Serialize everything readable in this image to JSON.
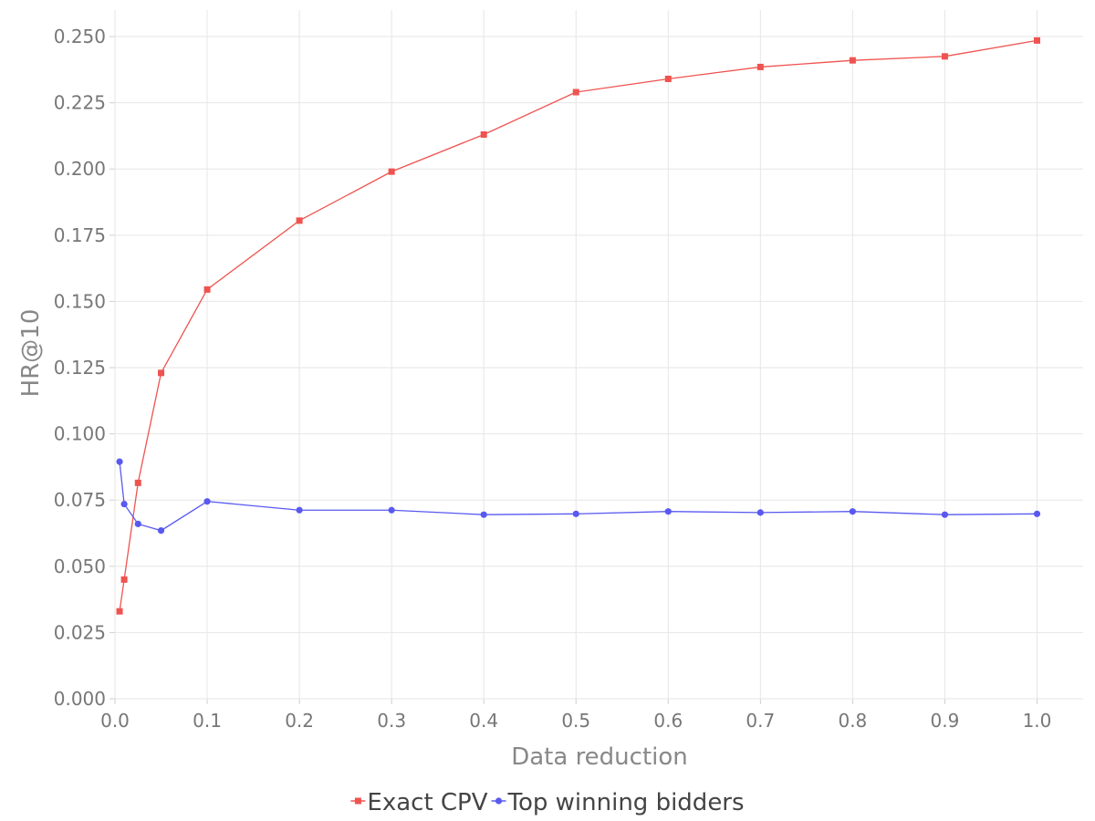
{
  "chart_data": {
    "type": "line",
    "title": "",
    "xlabel": "Data reduction",
    "ylabel": "HR@10",
    "xlim": [
      0,
      1.05
    ],
    "ylim": [
      0,
      0.26
    ],
    "grid": true,
    "legend_position": "bottom-center",
    "x_ticks": [
      0.0,
      0.1,
      0.2,
      0.3,
      0.4,
      0.5,
      0.6,
      0.7,
      0.8,
      0.9,
      1.0
    ],
    "x_tick_labels": [
      "0.0",
      "0.1",
      "0.2",
      "0.3",
      "0.4",
      "0.5",
      "0.6",
      "0.7",
      "0.8",
      "0.9",
      "1.0"
    ],
    "y_ticks": [
      0.0,
      0.025,
      0.05,
      0.075,
      0.1,
      0.125,
      0.15,
      0.175,
      0.2,
      0.225,
      0.25
    ],
    "y_tick_labels": [
      "0.000",
      "0.025",
      "0.050",
      "0.075",
      "0.100",
      "0.125",
      "0.150",
      "0.175",
      "0.200",
      "0.225",
      "0.250"
    ],
    "series": [
      {
        "name": "Exact CPV",
        "color": "#ef5350",
        "marker": "square",
        "x": [
          0.005,
          0.01,
          0.025,
          0.05,
          0.1,
          0.2,
          0.3,
          0.4,
          0.5,
          0.6,
          0.7,
          0.8,
          0.9,
          1.0
        ],
        "y": [
          0.033,
          0.045,
          0.0815,
          0.123,
          0.1545,
          0.1805,
          0.199,
          0.213,
          0.229,
          0.234,
          0.2385,
          0.241,
          0.2425,
          0.2485
        ]
      },
      {
        "name": "Top winning bidders",
        "color": "#5959f0",
        "marker": "circle",
        "x": [
          0.005,
          0.01,
          0.025,
          0.05,
          0.1,
          0.2,
          0.3,
          0.4,
          0.5,
          0.6,
          0.7,
          0.8,
          0.9,
          1.0
        ],
        "y": [
          0.0895,
          0.0735,
          0.066,
          0.0635,
          0.0745,
          0.0712,
          0.0712,
          0.0695,
          0.0698,
          0.0707,
          0.0703,
          0.0707,
          0.0695,
          0.0698
        ]
      }
    ]
  }
}
